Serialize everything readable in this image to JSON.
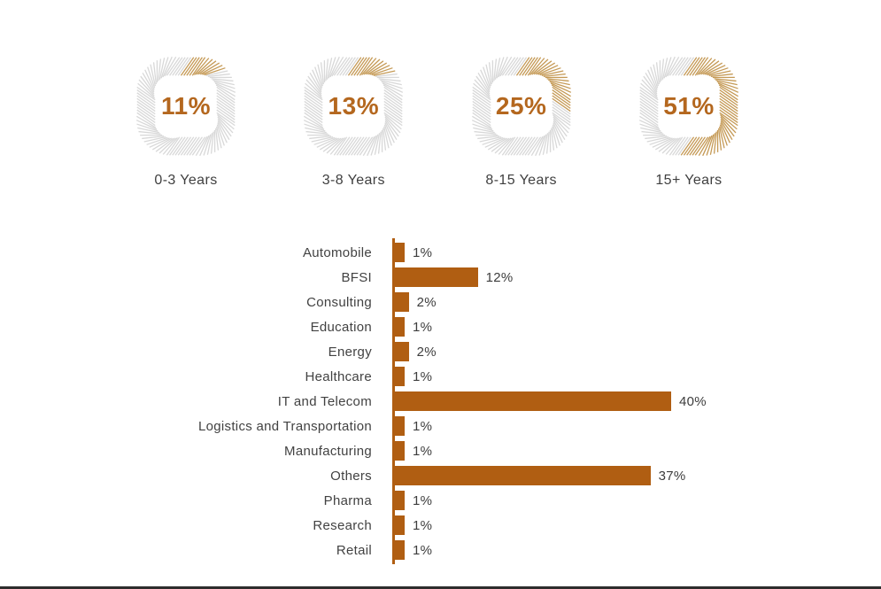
{
  "colors": {
    "bar": "#b05e12",
    "axis": "#b05e12",
    "gauge_fill": "#c59a56",
    "gauge_track": "#d8d8d8",
    "gauge_value_text": "#b4671e",
    "category_text": "#424242",
    "value_text": "#3d3d3d",
    "bottom_line": "#2d2d2d",
    "background": "#ffffff"
  },
  "chart_data": [
    {
      "type": "gauge-row",
      "description": "Years of experience distribution shown as rounded-square tick-ring gauges, fill starts at top center and runs clockwise",
      "gauges": [
        {
          "label": "0-3 Years",
          "value_pct": 11,
          "display": "11%"
        },
        {
          "label": "3-8 Years",
          "value_pct": 13,
          "display": "13%"
        },
        {
          "label": "8-15 Years",
          "value_pct": 25,
          "display": "25%"
        },
        {
          "label": "15+ Years",
          "value_pct": 51,
          "display": "51%"
        }
      ]
    },
    {
      "type": "bar",
      "orientation": "horizontal",
      "categories": [
        "Automobile",
        "BFSI",
        "Consulting",
        "Education",
        "Energy",
        "Healthcare",
        "IT and Telecom",
        "Logistics and Transportation",
        "Manufacturing",
        "Others",
        "Pharma",
        "Research",
        "Retail"
      ],
      "values": [
        1,
        12,
        2,
        1,
        2,
        1,
        40,
        1,
        1,
        37,
        1,
        1,
        1
      ],
      "value_labels": [
        "1%",
        "12%",
        "2%",
        "1%",
        "2%",
        "1%",
        "40%",
        "1%",
        "1%",
        "37%",
        "1%",
        "1%",
        "1%"
      ],
      "xlim": [
        0,
        45
      ],
      "grid": false,
      "legend": false,
      "value_label_position": "right-of-bar"
    }
  ]
}
